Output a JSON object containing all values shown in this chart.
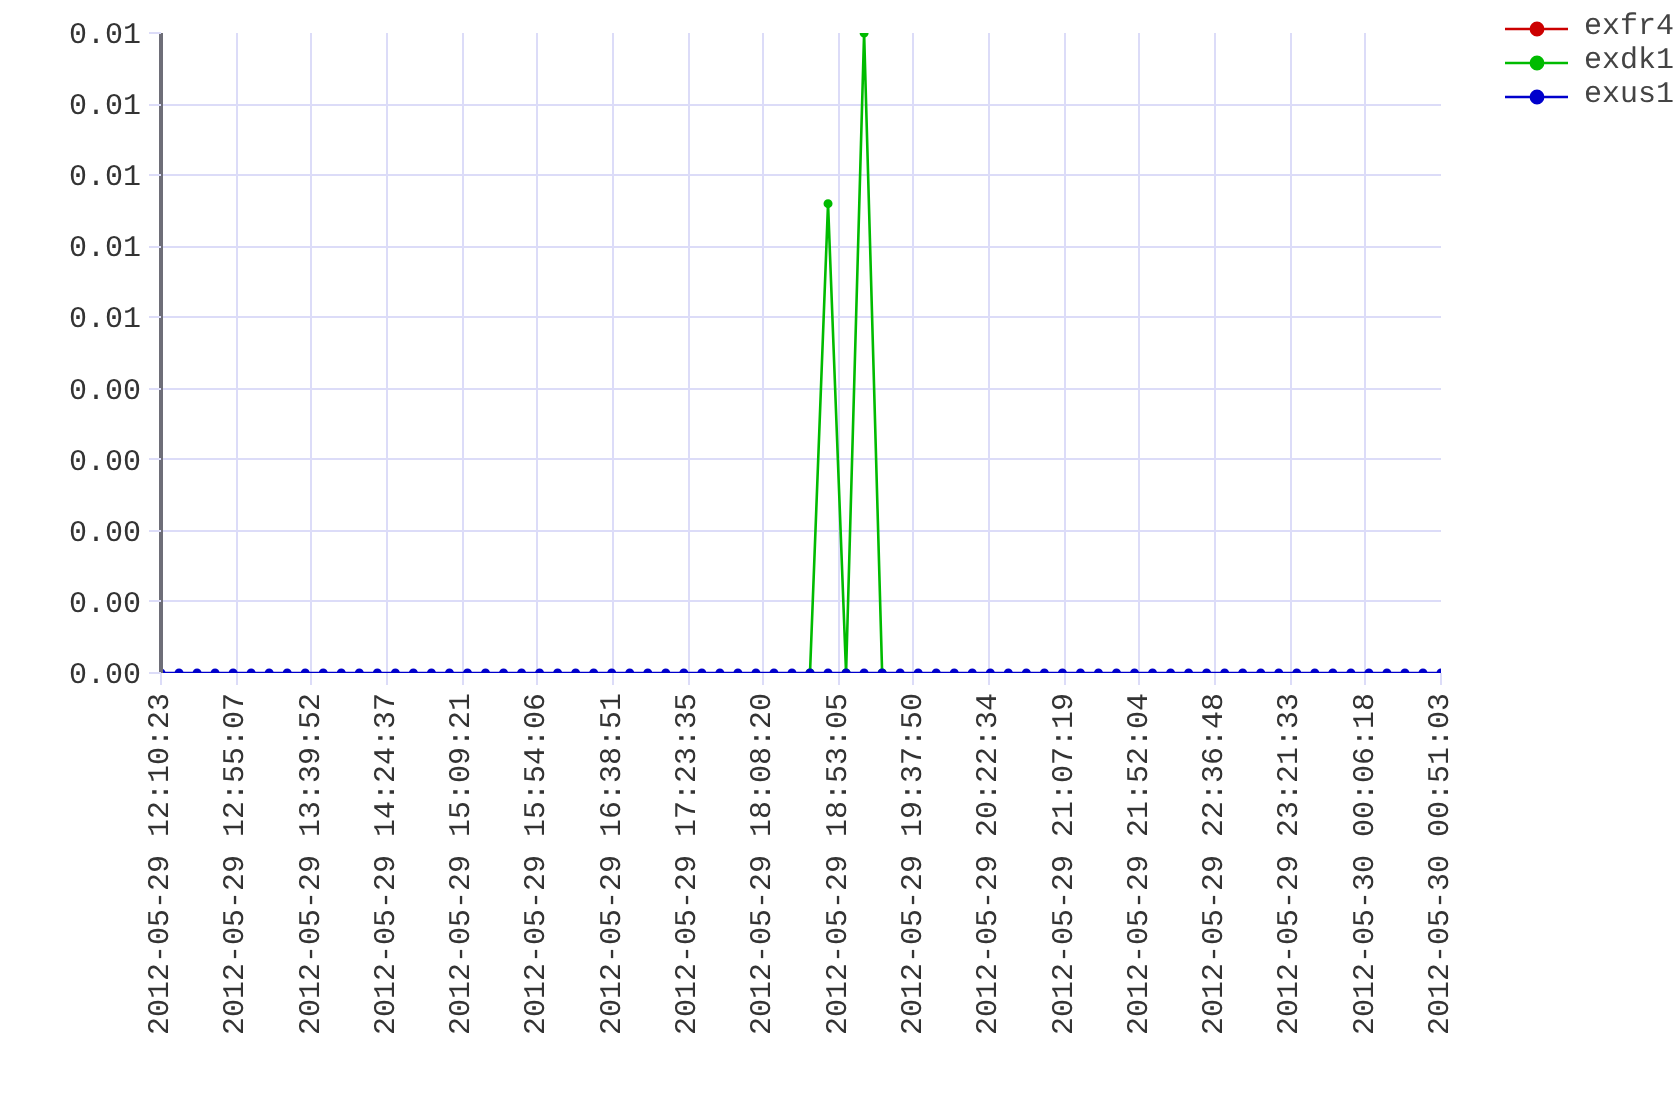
{
  "chart_data": {
    "type": "line",
    "x": [
      "2012-05-29T12:10:23",
      "2012-05-29T12:21:06",
      "2012-05-29T12:31:49",
      "2012-05-29T12:42:31",
      "2012-05-29T12:53:14",
      "2012-05-29T13:03:57",
      "2012-05-29T13:14:40",
      "2012-05-29T13:25:23",
      "2012-05-29T13:36:06",
      "2012-05-29T13:46:48",
      "2012-05-29T13:57:31",
      "2012-05-29T14:08:14",
      "2012-05-29T14:18:57",
      "2012-05-29T14:29:40",
      "2012-05-29T14:40:22",
      "2012-05-29T14:51:05",
      "2012-05-29T15:01:48",
      "2012-05-29T15:12:31",
      "2012-05-29T15:23:14",
      "2012-05-29T15:33:57",
      "2012-05-29T15:44:39",
      "2012-05-29T15:55:22",
      "2012-05-29T16:06:05",
      "2012-05-29T16:16:48",
      "2012-05-29T16:27:31",
      "2012-05-29T16:38:13",
      "2012-05-29T16:48:56",
      "2012-05-29T16:59:39",
      "2012-05-29T17:10:22",
      "2012-05-29T17:21:05",
      "2012-05-29T17:31:48",
      "2012-05-29T17:42:30",
      "2012-05-29T17:53:13",
      "2012-05-29T18:03:56",
      "2012-05-29T18:14:39",
      "2012-05-29T18:25:22",
      "2012-05-29T18:36:04",
      "2012-05-29T18:46:47",
      "2012-05-29T18:57:30",
      "2012-05-29T19:08:13",
      "2012-05-29T19:18:56",
      "2012-05-29T19:29:38",
      "2012-05-29T19:40:21",
      "2012-05-29T19:51:04",
      "2012-05-29T20:01:47",
      "2012-05-29T20:12:30",
      "2012-05-29T20:23:13",
      "2012-05-29T20:33:55",
      "2012-05-29T20:44:38",
      "2012-05-29T20:55:21",
      "2012-05-29T21:06:04",
      "2012-05-29T21:16:47",
      "2012-05-29T21:27:29",
      "2012-05-29T21:38:12",
      "2012-05-29T21:48:55",
      "2012-05-29T21:59:38",
      "2012-05-29T22:10:21",
      "2012-05-29T22:21:04",
      "2012-05-29T22:31:46",
      "2012-05-29T22:42:29",
      "2012-05-29T22:53:12",
      "2012-05-29T23:03:55",
      "2012-05-29T23:14:38",
      "2012-05-29T23:25:20",
      "2012-05-29T23:36:03",
      "2012-05-29T23:46:46",
      "2012-05-29T23:57:29",
      "2012-05-30T00:08:12",
      "2012-05-30T00:18:55",
      "2012-05-30T00:29:37",
      "2012-05-30T00:40:20",
      "2012-05-30T00:51:03"
    ],
    "xlim": [
      "2012-05-29T12:10:23",
      "2012-05-30T00:51:03"
    ],
    "xticks": [
      {
        "value": "2012-05-29T12:10:23",
        "label": "2012-05-29 12:10:23"
      },
      {
        "value": "2012-05-29T12:55:07",
        "label": "2012-05-29 12:55:07"
      },
      {
        "value": "2012-05-29T13:39:52",
        "label": "2012-05-29 13:39:52"
      },
      {
        "value": "2012-05-29T14:24:37",
        "label": "2012-05-29 14:24:37"
      },
      {
        "value": "2012-05-29T15:09:21",
        "label": "2012-05-29 15:09:21"
      },
      {
        "value": "2012-05-29T15:54:06",
        "label": "2012-05-29 15:54:06"
      },
      {
        "value": "2012-05-29T16:38:51",
        "label": "2012-05-29 16:38:51"
      },
      {
        "value": "2012-05-29T17:23:35",
        "label": "2012-05-29 17:23:35"
      },
      {
        "value": "2012-05-29T18:08:20",
        "label": "2012-05-29 18:08:20"
      },
      {
        "value": "2012-05-29T18:53:05",
        "label": "2012-05-29 18:53:05"
      },
      {
        "value": "2012-05-29T19:37:50",
        "label": "2012-05-29 19:37:50"
      },
      {
        "value": "2012-05-29T20:22:34",
        "label": "2012-05-29 20:22:34"
      },
      {
        "value": "2012-05-29T21:07:19",
        "label": "2012-05-29 21:07:19"
      },
      {
        "value": "2012-05-29T21:52:04",
        "label": "2012-05-29 21:52:04"
      },
      {
        "value": "2012-05-29T22:36:48",
        "label": "2012-05-29 22:36:48"
      },
      {
        "value": "2012-05-29T23:21:33",
        "label": "2012-05-29 23:21:33"
      },
      {
        "value": "2012-05-30T00:06:18",
        "label": "2012-05-30 00:06:18"
      },
      {
        "value": "2012-05-30T00:51:03",
        "label": "2012-05-30 00:51:03"
      }
    ],
    "ylim": [
      0,
      0.009
    ],
    "yticks": [
      {
        "value": 0,
        "label": "0.00"
      },
      {
        "value": 0.001,
        "label": "0.00"
      },
      {
        "value": 0.002,
        "label": "0.00"
      },
      {
        "value": 0.003,
        "label": "0.00"
      },
      {
        "value": 0.004,
        "label": "0.00"
      },
      {
        "value": 0.005,
        "label": "0.01"
      },
      {
        "value": 0.006,
        "label": "0.01"
      },
      {
        "value": 0.007,
        "label": "0.01"
      },
      {
        "value": 0.008,
        "label": "0.01"
      },
      {
        "value": 0.009,
        "label": "0.01"
      }
    ],
    "series": [
      {
        "name": "exfr4",
        "color": "#cc0000",
        "values": [
          null,
          null,
          null,
          null,
          null,
          null,
          null,
          null,
          null,
          null,
          null,
          null,
          null,
          null,
          null,
          null,
          null,
          null,
          null,
          null,
          null,
          null,
          null,
          null,
          null,
          null,
          null,
          null,
          null,
          null,
          null,
          null,
          null,
          null,
          null,
          null,
          null,
          null,
          null,
          null,
          null,
          null,
          null,
          null,
          null,
          null,
          null,
          null,
          null,
          null,
          null,
          null,
          null,
          null,
          null,
          null,
          null,
          null,
          null,
          null,
          null,
          null,
          null,
          null,
          null,
          null,
          null,
          null,
          null,
          null,
          null,
          null
        ]
      },
      {
        "name": "exdk1",
        "color": "#00bb00",
        "values": [
          null,
          null,
          null,
          null,
          null,
          null,
          null,
          null,
          null,
          null,
          null,
          null,
          null,
          null,
          null,
          null,
          null,
          null,
          null,
          null,
          null,
          null,
          null,
          null,
          null,
          null,
          null,
          null,
          null,
          null,
          null,
          null,
          null,
          null,
          null,
          null,
          0,
          0.0066,
          0,
          0.009,
          0,
          null,
          null,
          null,
          null,
          null,
          null,
          null,
          null,
          null,
          null,
          null,
          null,
          null,
          null,
          null,
          null,
          null,
          null,
          null,
          null,
          null,
          null,
          null,
          null,
          null,
          null,
          null,
          null,
          null,
          null,
          null
        ]
      },
      {
        "name": "exus1",
        "color": "#0000cc",
        "values": [
          0,
          0,
          0,
          0,
          0,
          0,
          0,
          0,
          0,
          0,
          0,
          0,
          0,
          0,
          0,
          0,
          0,
          0,
          0,
          0,
          0,
          0,
          0,
          0,
          0,
          0,
          0,
          0,
          0,
          0,
          0,
          0,
          0,
          0,
          0,
          0,
          0,
          0,
          0,
          0,
          0,
          0,
          0,
          0,
          0,
          0,
          0,
          0,
          0,
          0,
          0,
          0,
          0,
          0,
          0,
          0,
          0,
          0,
          0,
          0,
          0,
          0,
          0,
          0,
          0,
          0,
          0,
          0,
          0,
          0,
          0,
          0
        ]
      }
    ],
    "grid": true,
    "legend": "top right",
    "marker": "circle"
  }
}
